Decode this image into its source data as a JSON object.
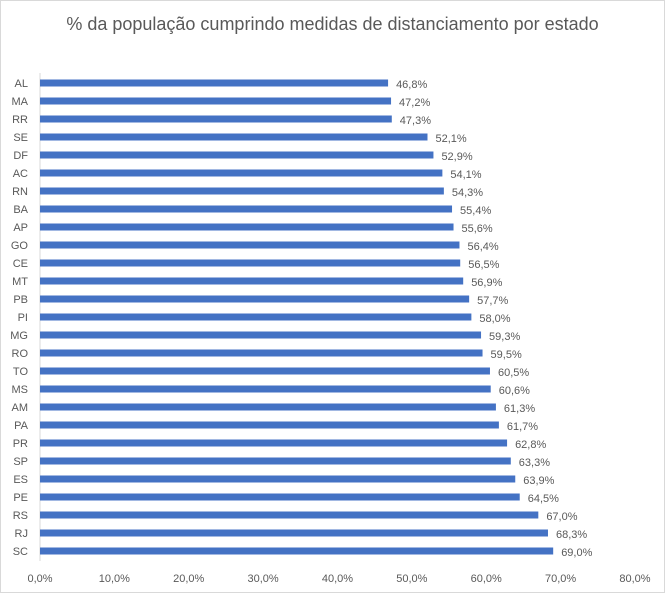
{
  "chart_data": {
    "type": "bar",
    "orientation": "horizontal",
    "title": "% da população cumprindo medidas de distanciamento por estado",
    "xlabel": "",
    "ylabel": "",
    "xlim": [
      0,
      80
    ],
    "x_ticks": [
      "0,0%",
      "10,0%",
      "20,0%",
      "30,0%",
      "40,0%",
      "50,0%",
      "60,0%",
      "70,0%",
      "80,0%"
    ],
    "grid": false,
    "legend": "none",
    "bar_color": "#4472c4",
    "categories": [
      "AL",
      "MA",
      "RR",
      "SE",
      "DF",
      "AC",
      "RN",
      "BA",
      "AP",
      "GO",
      "CE",
      "MT",
      "PB",
      "PI",
      "MG",
      "RO",
      "TO",
      "MS",
      "AM",
      "PA",
      "PR",
      "SP",
      "ES",
      "PE",
      "RS",
      "RJ",
      "SC"
    ],
    "values": [
      46.8,
      47.2,
      47.3,
      52.1,
      52.9,
      54.1,
      54.3,
      55.4,
      55.6,
      56.4,
      56.5,
      56.9,
      57.7,
      58.0,
      59.3,
      59.5,
      60.5,
      60.6,
      61.3,
      61.7,
      62.8,
      63.3,
      63.9,
      64.5,
      67.0,
      68.3,
      69.0
    ],
    "data_labels": [
      "46,8%",
      "47,2%",
      "47,3%",
      "52,1%",
      "52,9%",
      "54,1%",
      "54,3%",
      "55,4%",
      "55,6%",
      "56,4%",
      "56,5%",
      "56,9%",
      "57,7%",
      "58,0%",
      "59,3%",
      "59,5%",
      "60,5%",
      "60,6%",
      "61,3%",
      "61,7%",
      "62,8%",
      "63,3%",
      "63,9%",
      "64,5%",
      "67,0%",
      "68,3%",
      "69,0%"
    ]
  }
}
